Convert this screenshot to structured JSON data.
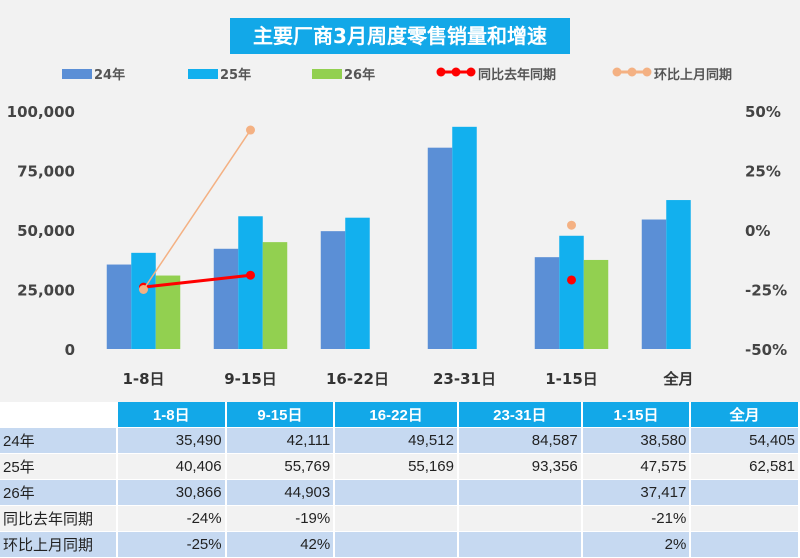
{
  "chart_data": {
    "type": "bar",
    "title": "主要厂商3月周度零售销量和增速",
    "categories": [
      "1-8日",
      "9-15日",
      "16-22日",
      "23-31日",
      "1-15日",
      "全月"
    ],
    "series": [
      {
        "name": "24年",
        "kind": "bar",
        "color": "#5b8fd6",
        "values": [
          35490,
          42111,
          49512,
          84587,
          38580,
          54405
        ]
      },
      {
        "name": "25年",
        "kind": "bar",
        "color": "#12b0ee",
        "values": [
          40406,
          55769,
          55169,
          93356,
          47575,
          62581
        ]
      },
      {
        "name": "26年",
        "kind": "bar",
        "color": "#92d050",
        "values": [
          30866,
          44903,
          null,
          null,
          37417,
          null
        ]
      },
      {
        "name": "同比去年同期",
        "kind": "line",
        "axis": "right",
        "color": "#ff0000",
        "values": [
          -24,
          -19,
          null,
          null,
          -21,
          null
        ]
      },
      {
        "name": "环比上月同期",
        "kind": "line",
        "axis": "right",
        "color": "#f4b183",
        "values": [
          -25,
          42,
          null,
          null,
          2,
          null
        ]
      }
    ],
    "ylim": [
      0,
      100000
    ],
    "y_ticks": [
      "0",
      "25,000",
      "50,000",
      "75,000",
      "100,000"
    ],
    "y2lim": [
      -50,
      50
    ],
    "y2_ticks": [
      "-50%",
      "-25%",
      "0%",
      "25%",
      "50%"
    ],
    "legend": "top"
  },
  "table": {
    "header": [
      "",
      "1-8日",
      "9-15日",
      "16-22日",
      "23-31日",
      "1-15日",
      "全月"
    ],
    "rows": [
      [
        "24年",
        "35,490",
        "42,111",
        "49,512",
        "84,587",
        "38,580",
        "54,405"
      ],
      [
        "25年",
        "40,406",
        "55,769",
        "55,169",
        "93,356",
        "47,575",
        "62,581"
      ],
      [
        "26年",
        "30,866",
        "44,903",
        "",
        "",
        "37,417",
        ""
      ],
      [
        "同比去年同期",
        "-24%",
        "-19%",
        "",
        "",
        "-21%",
        ""
      ],
      [
        "环比上月同期",
        "-25%",
        "42%",
        "",
        "",
        "2%",
        ""
      ]
    ]
  }
}
